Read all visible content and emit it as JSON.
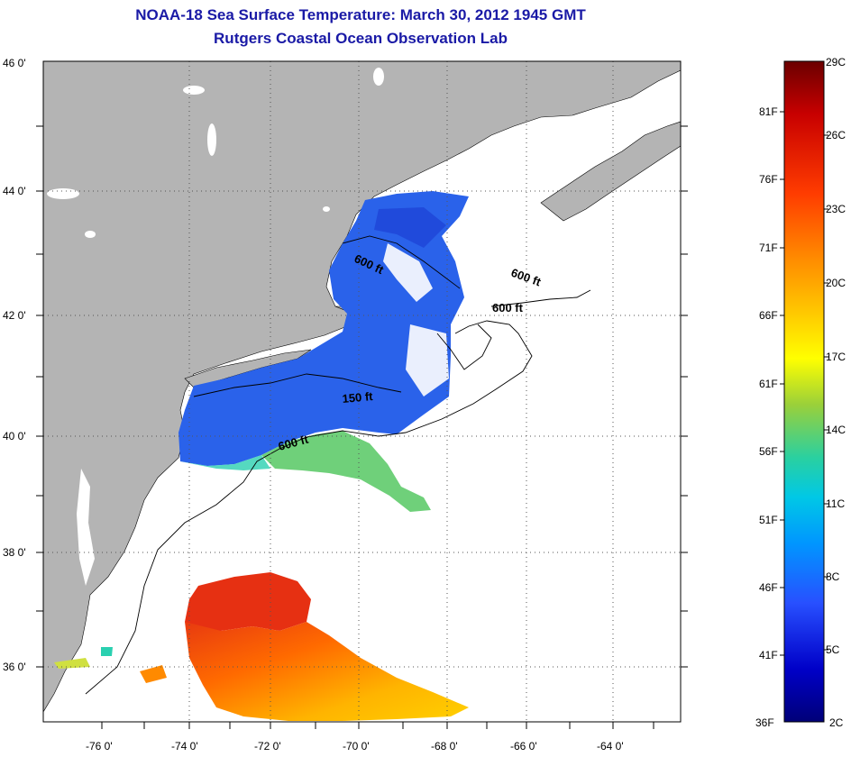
{
  "header": {
    "title": "NOAA-18 Sea Surface Temperature:  March 30, 2012 1945 GMT",
    "subtitle": "Rutgers Coastal Ocean Observation Lab"
  },
  "map": {
    "lon_labels": [
      "-76 0'",
      "-74 0'",
      "-72 0'",
      "-70 0'",
      "-68 0'",
      "-66 0'",
      "-64 0'"
    ],
    "lat_labels": [
      "46 0'",
      "44 0'",
      "42 0'",
      "40 0'",
      "38 0'",
      "36 0'"
    ],
    "contour_labels": [
      "600 ft",
      "600 ft",
      "600 ft",
      "150 ft",
      "600 ft"
    ],
    "land_color": "#b4b4b4",
    "ocean_color": "#ffffff"
  },
  "colorbar": {
    "fahrenheit_labels": [
      "81F",
      "76F",
      "71F",
      "66F",
      "61F",
      "56F",
      "51F",
      "46F",
      "41F",
      "36F"
    ],
    "celsius_labels": [
      "29C",
      "26C",
      "23C",
      "20C",
      "17C",
      "14C",
      "11C",
      "8C",
      "5C",
      "2C"
    ],
    "colors": [
      "#6b0000",
      "#c80000",
      "#ff3c00",
      "#ff8c00",
      "#ffc800",
      "#ffff00",
      "#9ad03a",
      "#2ad0a0",
      "#00c8e6",
      "#0096ff",
      "#2850ff",
      "#0000c8",
      "#000078"
    ]
  }
}
